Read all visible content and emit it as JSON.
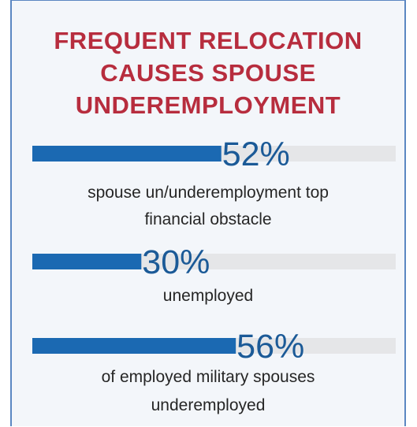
{
  "title": [
    "FREQUENT RELOCATION",
    "CAUSES SPOUSE",
    "UNDEREMPLOYMENT"
  ],
  "colors": {
    "title": "#b72d3e",
    "bar_fill": "#1b69b2",
    "bar_track": "#e5e6e8",
    "value_text": "#1b5a97",
    "label_text": "#262626",
    "panel_background": "#f3f6fa",
    "panel_border": "#5b87c2"
  },
  "chart_data": {
    "type": "bar",
    "orientation": "horizontal",
    "title": "FREQUENT RELOCATION CAUSES SPOUSE UNDEREMPLOYMENT",
    "unit": "%",
    "xlim": [
      0,
      100
    ],
    "grid": false,
    "legend": "none",
    "items": [
      {
        "value": 52,
        "value_label": "52%",
        "label_lines": [
          "spouse un/underemployment top",
          "financial obstacle"
        ]
      },
      {
        "value": 30,
        "value_label": "30%",
        "label_lines": [
          "unemployed"
        ]
      },
      {
        "value": 56,
        "value_label": "56%",
        "label_lines": [
          "of employed military spouses",
          "underemployed"
        ]
      }
    ]
  }
}
